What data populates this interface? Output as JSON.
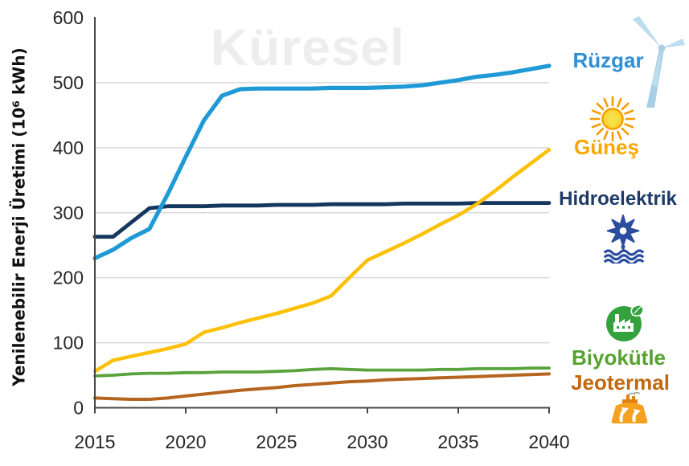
{
  "chart_data": {
    "type": "line",
    "title": "",
    "watermark": "Küresel",
    "xlabel": "",
    "ylabel": "Yenilenebilir Enerji Üretimi (10⁶ kWh)",
    "xlim": [
      2015,
      2040
    ],
    "ylim": [
      0,
      600
    ],
    "xticks": [
      2015,
      2020,
      2025,
      2030,
      2035,
      2040
    ],
    "yticks": [
      0,
      100,
      200,
      300,
      400,
      500,
      600
    ],
    "grid": "horizontal",
    "legend_position": "right",
    "x": [
      2015,
      2016,
      2017,
      2018,
      2019,
      2020,
      2021,
      2022,
      2023,
      2024,
      2025,
      2026,
      2027,
      2028,
      2029,
      2030,
      2031,
      2032,
      2033,
      2034,
      2035,
      2036,
      2037,
      2038,
      2039,
      2040
    ],
    "series": [
      {
        "name": "Hidroelektrik",
        "color": "#15365f",
        "width": 4.8,
        "values": [
          263,
          263,
          285,
          307,
          310,
          310,
          310,
          311,
          311,
          311,
          312,
          312,
          312,
          313,
          313,
          313,
          313,
          314,
          314,
          314,
          314,
          315,
          315,
          315,
          315,
          315
        ]
      },
      {
        "name": "Biyokütle",
        "color": "#59a23c",
        "width": 3.8,
        "values": [
          49,
          50,
          52,
          53,
          53,
          54,
          54,
          55,
          55,
          55,
          56,
          57,
          59,
          60,
          59,
          58,
          58,
          58,
          58,
          59,
          59,
          60,
          60,
          60,
          61,
          61
        ]
      },
      {
        "name": "Jeotermal",
        "color": "#b5651f",
        "width": 4,
        "values": [
          15,
          14,
          13,
          13,
          15,
          18,
          21,
          24,
          27,
          29,
          31,
          34,
          36,
          38,
          40,
          41,
          43,
          44,
          45,
          46,
          47,
          48,
          49,
          50,
          51,
          52
        ]
      },
      {
        "name": "Güneş",
        "color": "#fcc107",
        "width": 4.5,
        "values": [
          56,
          73,
          79,
          85,
          91,
          98,
          116,
          123,
          131,
          138,
          145,
          153,
          161,
          172,
          200,
          227,
          240,
          253,
          267,
          282,
          296,
          313,
          333,
          355,
          376,
          397
        ]
      },
      {
        "name": "Rüzgar",
        "color": "#1f9ad6",
        "width": 5.2,
        "values": [
          230,
          243,
          261,
          275,
          328,
          386,
          442,
          480,
          490,
          491,
          491,
          491,
          491,
          492,
          492,
          492,
          493,
          494,
          496,
          500,
          504,
          509,
          512,
          516,
          521,
          526
        ]
      }
    ]
  },
  "legend": [
    {
      "label": "Rüzgar",
      "text_color": "#2f8fd6",
      "icon": "wind-turbine-icon"
    },
    {
      "label": "Güneş",
      "text_color": "#f8a700",
      "icon": "sun-icon"
    },
    {
      "label": "Hidroelektrik",
      "text_color": "#1d3a68",
      "icon": "hydro-turbine-icon"
    },
    {
      "label": "Biyokütle",
      "text_color": "#55a32e",
      "icon": "biomass-icon"
    },
    {
      "label": "Jeotermal",
      "text_color": "#c2690f",
      "icon": "geothermal-icon"
    }
  ],
  "colors": {
    "background": "#ffffff",
    "gridline": "#d8d8d8",
    "axis": "#474747",
    "tick_text": "#262626",
    "watermark": "#ededed"
  }
}
